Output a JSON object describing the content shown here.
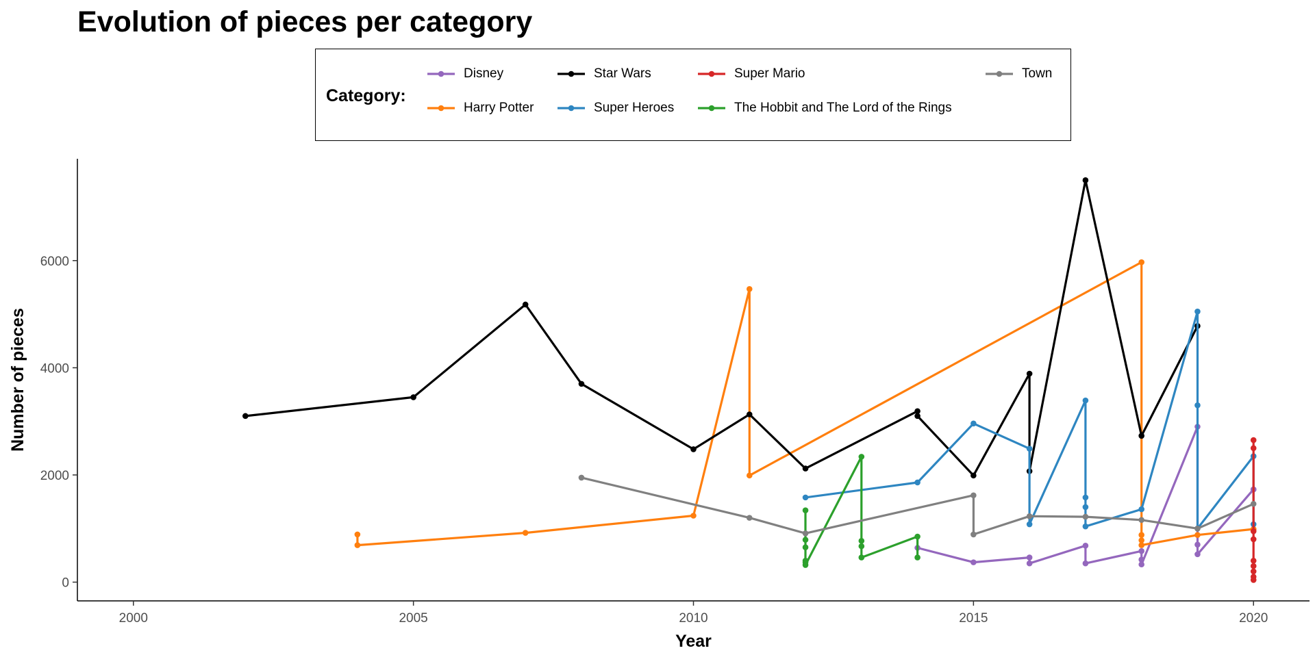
{
  "chart_data": {
    "type": "line",
    "title": "Evolution of pieces per category",
    "xlabel": "Year",
    "ylabel": "Number of pieces",
    "xlim": [
      1999,
      2021
    ],
    "ylim": [
      -350,
      7900
    ],
    "x_ticks": [
      2000,
      2005,
      2010,
      2015,
      2020
    ],
    "y_ticks": [
      0,
      2000,
      4000,
      6000
    ],
    "grid": false,
    "legend": {
      "title": "Category:",
      "placement": "top"
    },
    "series": [
      {
        "name": "Disney",
        "color": "#9467BD",
        "x": [
          2014,
          2015,
          2016,
          2016,
          2017,
          2017,
          2018,
          2018,
          2018,
          2019,
          2019,
          2019,
          2020,
          2020
        ],
        "y": [
          640,
          370,
          460,
          350,
          680,
          350,
          580,
          420,
          330,
          2900,
          700,
          520,
          1730,
          1730
        ]
      },
      {
        "name": "Harry Potter",
        "color": "#FF7F0E",
        "x": [
          2004,
          2004,
          2007,
          2010,
          2011,
          2011,
          2018,
          2018,
          2018,
          2018,
          2019,
          2020,
          2020
        ],
        "y": [
          890,
          690,
          920,
          1240,
          5470,
          1990,
          5970,
          880,
          780,
          690,
          880,
          990,
          980
        ]
      },
      {
        "name": "Star Wars",
        "color": "#000000",
        "x": [
          2002,
          2005,
          2007,
          2008,
          2010,
          2011,
          2012,
          2014,
          2014,
          2015,
          2016,
          2016,
          2017,
          2018,
          2019
        ],
        "y": [
          3100,
          3450,
          5180,
          3700,
          2480,
          3130,
          2120,
          3190,
          3100,
          1990,
          3890,
          2070,
          7500,
          2730,
          4780
        ]
      },
      {
        "name": "Super Heroes",
        "color": "#2E86C1",
        "x": [
          2012,
          2014,
          2015,
          2016,
          2016,
          2017,
          2017,
          2017,
          2017,
          2018,
          2019,
          2019,
          2019,
          2020,
          2020
        ],
        "y": [
          1580,
          1860,
          2960,
          2490,
          1080,
          3390,
          1580,
          1400,
          1040,
          1360,
          5050,
          3300,
          1000,
          2350,
          1080
        ]
      },
      {
        "name": "Super Mario",
        "color": "#D62728",
        "x": [
          2020,
          2020,
          2020,
          2020,
          2020,
          2020,
          2020,
          2020,
          2020
        ],
        "y": [
          2650,
          2500,
          950,
          800,
          400,
          300,
          200,
          100,
          40
        ]
      },
      {
        "name": "The Hobbit and The Lord of the Rings",
        "color": "#2CA02C",
        "x": [
          2012,
          2012,
          2012,
          2012,
          2012,
          2012,
          2013,
          2013,
          2013,
          2013,
          2014,
          2014
        ],
        "y": [
          1340,
          790,
          650,
          400,
          370,
          320,
          2340,
          770,
          670,
          460,
          850,
          460
        ]
      },
      {
        "name": "Town",
        "color": "#808080",
        "x": [
          2008,
          2011,
          2012,
          2015,
          2015,
          2016,
          2017,
          2018,
          2019,
          2020
        ],
        "y": [
          1950,
          1200,
          910,
          1620,
          890,
          1230,
          1220,
          1160,
          1000,
          1460
        ]
      }
    ]
  }
}
